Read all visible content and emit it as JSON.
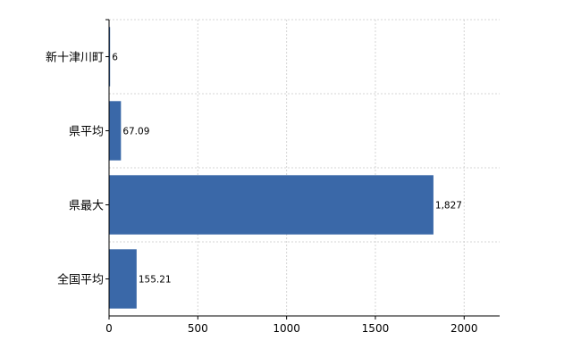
{
  "chart_data": {
    "type": "bar",
    "orientation": "horizontal",
    "categories": [
      "新十津川町",
      "県平均",
      "県最大",
      "全国平均"
    ],
    "values": [
      6,
      67.09,
      1827,
      155.21
    ],
    "value_labels": [
      "6",
      "67.09",
      "1,827",
      "155.21"
    ],
    "xlim": [
      0,
      2200
    ],
    "x_ticks": [
      0,
      500,
      1000,
      1500,
      2000
    ],
    "x_tick_labels": [
      "0",
      "500",
      "1000",
      "1500",
      "2000"
    ],
    "grid": true,
    "bar_color": "#3a68a8"
  }
}
